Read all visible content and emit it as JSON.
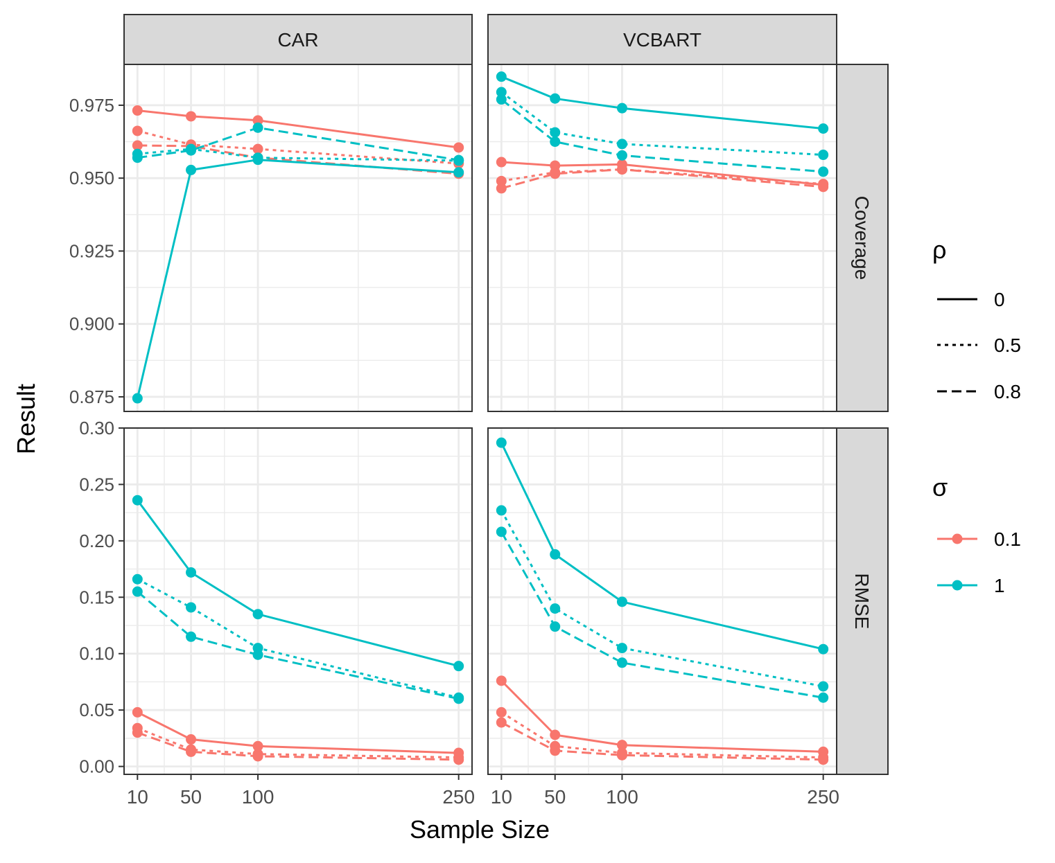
{
  "chart_data": {
    "type": "line",
    "xlabel": "Sample Size",
    "ylabel": "Result",
    "x": [
      10,
      50,
      100,
      250
    ],
    "x_ticks": [
      "10",
      "50",
      "100",
      "250"
    ],
    "columns": [
      "CAR",
      "VCBART"
    ],
    "rows": [
      "Coverage",
      "RMSE"
    ],
    "row_scales": {
      "Coverage": {
        "ylim": [
          0.87,
          0.989
        ],
        "ticks": [
          "0.875",
          "0.900",
          "0.925",
          "0.950",
          "0.975"
        ]
      },
      "RMSE": {
        "ylim": [
          -0.007,
          0.3
        ],
        "ticks": [
          "0.00",
          "0.05",
          "0.10",
          "0.15",
          "0.20",
          "0.25",
          "0.30"
        ]
      }
    },
    "legend": {
      "rho": {
        "title": "ρ",
        "entries": [
          {
            "label": "0",
            "dash": "solid"
          },
          {
            "label": "0.5",
            "dash": "dotted"
          },
          {
            "label": "0.8",
            "dash": "dashed"
          }
        ]
      },
      "sigma": {
        "title": "σ",
        "entries": [
          {
            "label": "0.1",
            "color": "#F8766D"
          },
          {
            "label": "1",
            "color": "#00BFC4"
          }
        ]
      }
    },
    "panels": [
      {
        "column": "CAR",
        "row": "Coverage",
        "series": [
          {
            "sigma": "0.1",
            "rho": "0",
            "values": [
              0.9732,
              0.9712,
              0.9698,
              0.9605
            ]
          },
          {
            "sigma": "0.1",
            "rho": "0.5",
            "values": [
              0.9662,
              0.9615,
              0.96,
              0.955
            ]
          },
          {
            "sigma": "0.1",
            "rho": "0.8",
            "values": [
              0.9612,
              0.961,
              0.957,
              0.9515
            ]
          },
          {
            "sigma": "1",
            "rho": "0",
            "values": [
              0.8745,
              0.9528,
              0.9563,
              0.952
            ]
          },
          {
            "sigma": "1",
            "rho": "0.5",
            "values": [
              0.9583,
              0.96,
              0.957,
              0.956
            ]
          },
          {
            "sigma": "1",
            "rho": "0.8",
            "values": [
              0.957,
              0.9595,
              0.9673,
              0.9562
            ]
          }
        ]
      },
      {
        "column": "VCBART",
        "row": "Coverage",
        "series": [
          {
            "sigma": "0.1",
            "rho": "0",
            "values": [
              0.9555,
              0.9543,
              0.9547,
              0.9477
            ]
          },
          {
            "sigma": "0.1",
            "rho": "0.5",
            "values": [
              0.949,
              0.952,
              0.953,
              0.948
            ]
          },
          {
            "sigma": "0.1",
            "rho": "0.8",
            "values": [
              0.9465,
              0.9515,
              0.953,
              0.947
            ]
          },
          {
            "sigma": "1",
            "rho": "0",
            "values": [
              0.9848,
              0.9773,
              0.974,
              0.967
            ]
          },
          {
            "sigma": "1",
            "rho": "0.5",
            "values": [
              0.9795,
              0.9657,
              0.9617,
              0.958
            ]
          },
          {
            "sigma": "1",
            "rho": "0.8",
            "values": [
              0.977,
              0.9625,
              0.9578,
              0.9522
            ]
          }
        ]
      },
      {
        "column": "CAR",
        "row": "RMSE",
        "series": [
          {
            "sigma": "0.1",
            "rho": "0",
            "values": [
              0.048,
              0.024,
              0.018,
              0.012
            ]
          },
          {
            "sigma": "0.1",
            "rho": "0.5",
            "values": [
              0.034,
              0.015,
              0.011,
              0.008
            ]
          },
          {
            "sigma": "0.1",
            "rho": "0.8",
            "values": [
              0.03,
              0.013,
              0.009,
              0.006
            ]
          },
          {
            "sigma": "1",
            "rho": "0",
            "values": [
              0.236,
              0.172,
              0.135,
              0.089
            ]
          },
          {
            "sigma": "1",
            "rho": "0.5",
            "values": [
              0.166,
              0.141,
              0.105,
              0.061
            ]
          },
          {
            "sigma": "1",
            "rho": "0.8",
            "values": [
              0.155,
              0.115,
              0.099,
              0.06
            ]
          }
        ]
      },
      {
        "column": "VCBART",
        "row": "RMSE",
        "series": [
          {
            "sigma": "0.1",
            "rho": "0",
            "values": [
              0.076,
              0.028,
              0.019,
              0.013
            ]
          },
          {
            "sigma": "0.1",
            "rho": "0.5",
            "values": [
              0.048,
              0.018,
              0.012,
              0.008
            ]
          },
          {
            "sigma": "0.1",
            "rho": "0.8",
            "values": [
              0.039,
              0.014,
              0.01,
              0.006
            ]
          },
          {
            "sigma": "1",
            "rho": "0",
            "values": [
              0.287,
              0.188,
              0.146,
              0.104
            ]
          },
          {
            "sigma": "1",
            "rho": "0.5",
            "values": [
              0.227,
              0.14,
              0.105,
              0.071
            ]
          },
          {
            "sigma": "1",
            "rho": "0.8",
            "values": [
              0.208,
              0.124,
              0.092,
              0.061
            ]
          }
        ]
      }
    ]
  }
}
